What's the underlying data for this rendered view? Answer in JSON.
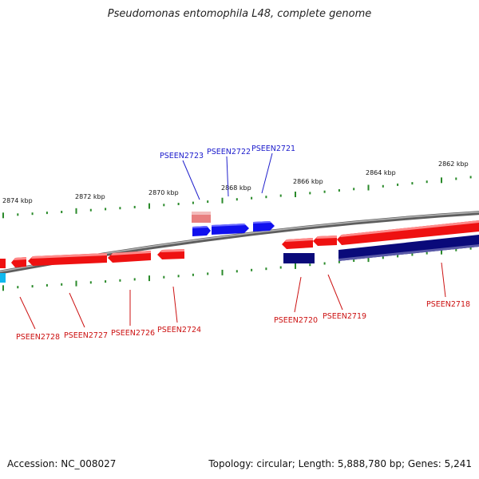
{
  "title": "Pseudomonas entomophila L48, complete genome",
  "footer": {
    "accession": "Accession: NC_008027",
    "summary": "Topology: circular; Length: 5,888,780 bp; Genes: 5,241"
  },
  "colors": {
    "backbone": "#8a8a8a",
    "forward_gene": "#1010ee",
    "reverse_gene": "#ee1111",
    "rna": "#e87f7f",
    "forward_track_dark": "#0a0a7a",
    "cyan_gene": "#10b8ee",
    "tick": "#2a8a2a"
  },
  "scale_labels": [
    "2874 kbp",
    "2872 kbp",
    "2870 kbp",
    "2868 kbp",
    "2866 kbp",
    "2864 kbp",
    "2862 kbp"
  ],
  "gene_labels_top": [
    "PSEEN2723",
    "PSEEN2722",
    "PSEEN2721"
  ],
  "gene_labels_bottom": [
    "PSEEN2728",
    "PSEEN2727",
    "PSEEN2726",
    "PSEEN2724",
    "PSEEN2720",
    "PSEEN2719",
    "PSEEN2718"
  ]
}
